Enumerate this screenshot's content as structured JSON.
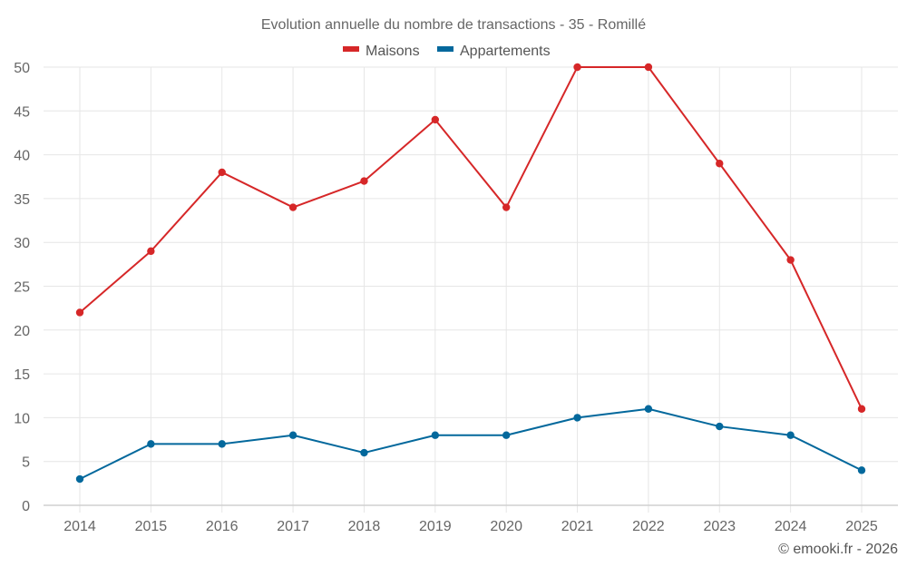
{
  "chart_data": {
    "type": "line",
    "title": "Evolution annuelle du nombre de transactions - 35 - Romillé",
    "xlabel": "",
    "ylabel": "",
    "x": [
      "2014",
      "2015",
      "2016",
      "2017",
      "2018",
      "2019",
      "2020",
      "2021",
      "2022",
      "2023",
      "2024",
      "2025"
    ],
    "ylim": [
      0,
      50
    ],
    "yticks": [
      "0",
      "5",
      "10",
      "15",
      "20",
      "25",
      "30",
      "35",
      "40",
      "45",
      "50"
    ],
    "grid": true,
    "legend_position": "top-center",
    "series": [
      {
        "name": "Maisons",
        "color": "#d62728",
        "values": [
          22,
          29,
          38,
          34,
          37,
          44,
          34,
          50,
          50,
          39,
          28,
          11
        ]
      },
      {
        "name": "Appartements",
        "color": "#03689c",
        "values": [
          3,
          7,
          7,
          8,
          6,
          8,
          8,
          10,
          11,
          9,
          8,
          4
        ]
      }
    ],
    "credit": "© emooki.fr - 2026"
  }
}
